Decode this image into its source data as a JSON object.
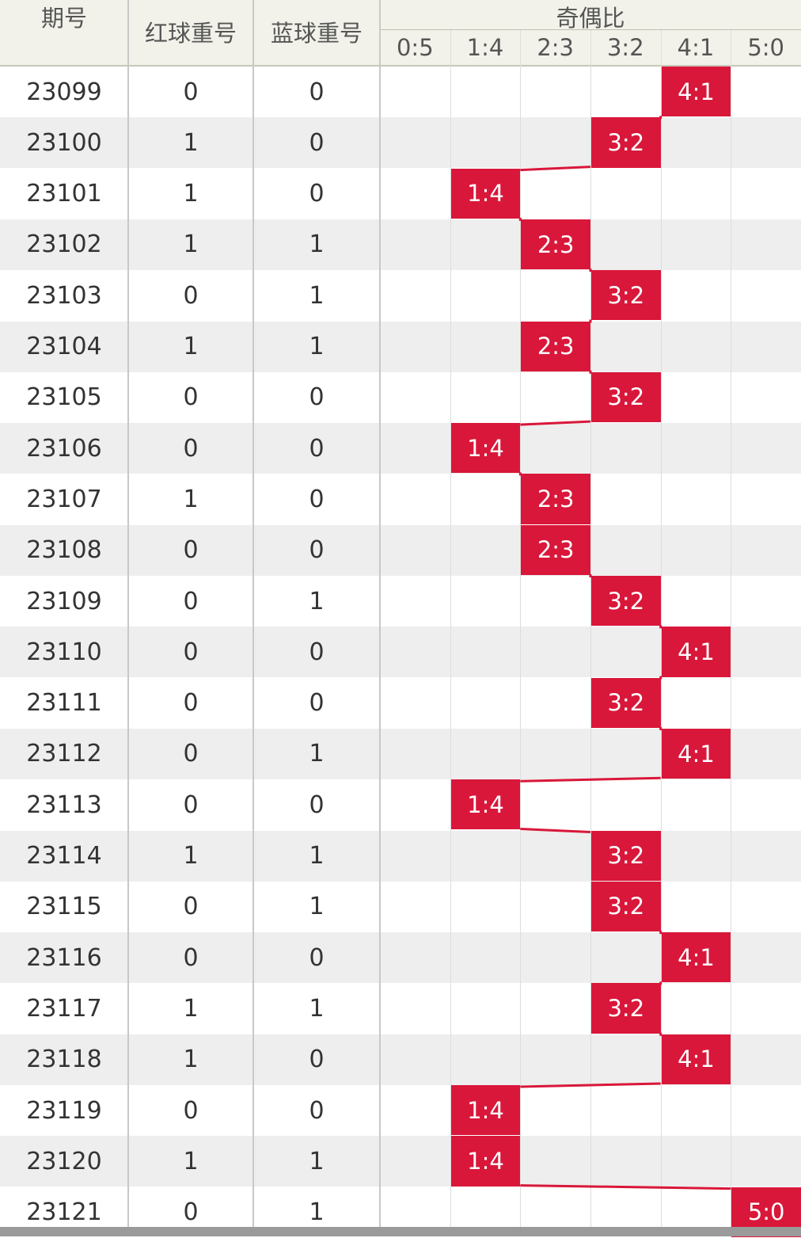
{
  "header": {
    "period_label": "期号",
    "red_repeat_label": "红球重号",
    "blue_repeat_label": "蓝球重号",
    "ratio_group_label": "奇偶比"
  },
  "colors": {
    "marker": "#d9173a",
    "alt_row": "#eeeeee",
    "header_bg": "#f2f2ea"
  },
  "chart_data": {
    "type": "table",
    "ratio_categories": [
      "0:5",
      "1:4",
      "2:3",
      "3:2",
      "4:1",
      "5:0"
    ],
    "rows": [
      {
        "period": "23099",
        "red_repeat": "0",
        "blue_repeat": "0",
        "ratio": "4:1"
      },
      {
        "period": "23100",
        "red_repeat": "1",
        "blue_repeat": "0",
        "ratio": "3:2"
      },
      {
        "period": "23101",
        "red_repeat": "1",
        "blue_repeat": "0",
        "ratio": "1:4"
      },
      {
        "period": "23102",
        "red_repeat": "1",
        "blue_repeat": "1",
        "ratio": "2:3"
      },
      {
        "period": "23103",
        "red_repeat": "0",
        "blue_repeat": "1",
        "ratio": "3:2"
      },
      {
        "period": "23104",
        "red_repeat": "1",
        "blue_repeat": "1",
        "ratio": "2:3"
      },
      {
        "period": "23105",
        "red_repeat": "0",
        "blue_repeat": "0",
        "ratio": "3:2"
      },
      {
        "period": "23106",
        "red_repeat": "0",
        "blue_repeat": "0",
        "ratio": "1:4"
      },
      {
        "period": "23107",
        "red_repeat": "1",
        "blue_repeat": "0",
        "ratio": "2:3"
      },
      {
        "period": "23108",
        "red_repeat": "0",
        "blue_repeat": "0",
        "ratio": "2:3"
      },
      {
        "period": "23109",
        "red_repeat": "0",
        "blue_repeat": "1",
        "ratio": "3:2"
      },
      {
        "period": "23110",
        "red_repeat": "0",
        "blue_repeat": "0",
        "ratio": "4:1"
      },
      {
        "period": "23111",
        "red_repeat": "0",
        "blue_repeat": "0",
        "ratio": "3:2"
      },
      {
        "period": "23112",
        "red_repeat": "0",
        "blue_repeat": "1",
        "ratio": "4:1"
      },
      {
        "period": "23113",
        "red_repeat": "0",
        "blue_repeat": "0",
        "ratio": "1:4"
      },
      {
        "period": "23114",
        "red_repeat": "1",
        "blue_repeat": "1",
        "ratio": "3:2"
      },
      {
        "period": "23115",
        "red_repeat": "0",
        "blue_repeat": "1",
        "ratio": "3:2"
      },
      {
        "period": "23116",
        "red_repeat": "0",
        "blue_repeat": "0",
        "ratio": "4:1"
      },
      {
        "period": "23117",
        "red_repeat": "1",
        "blue_repeat": "1",
        "ratio": "3:2"
      },
      {
        "period": "23118",
        "red_repeat": "1",
        "blue_repeat": "0",
        "ratio": "4:1"
      },
      {
        "period": "23119",
        "red_repeat": "0",
        "blue_repeat": "0",
        "ratio": "1:4"
      },
      {
        "period": "23120",
        "red_repeat": "1",
        "blue_repeat": "1",
        "ratio": "1:4"
      },
      {
        "period": "23121",
        "red_repeat": "0",
        "blue_repeat": "1",
        "ratio": "5:0"
      }
    ]
  }
}
